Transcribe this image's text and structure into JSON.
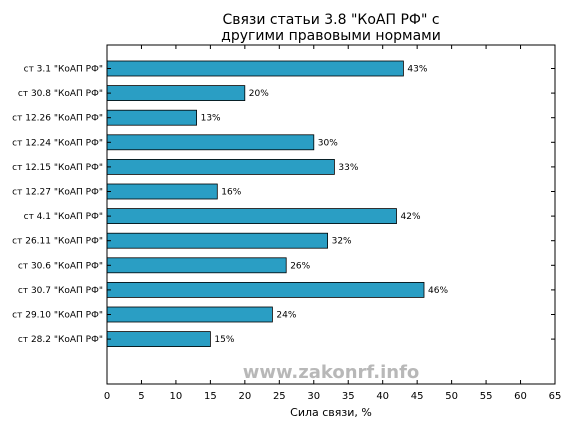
{
  "chart_data": {
    "type": "bar",
    "orientation": "horizontal",
    "title_line1": "Связи статьи 3.8 \"КоАП РФ\" с",
    "title_line2": "другими правовыми нормами",
    "xlabel": "Сила связи, %",
    "ylabel": "",
    "xlim": [
      0,
      65
    ],
    "x_ticks": [
      "0",
      "5",
      "10",
      "15",
      "20",
      "25",
      "30",
      "35",
      "40",
      "45",
      "50",
      "55",
      "60",
      "65"
    ],
    "categories": [
      "ст 3.1 \"КоАП РФ\"",
      "ст 30.8 \"КоАП РФ\"",
      "ст 12.26 \"КоАП РФ\"",
      "ст 12.24 \"КоАП РФ\"",
      "ст 12.15 \"КоАП РФ\"",
      "ст 12.27 \"КоАП РФ\"",
      "ст 4.1 \"КоАП РФ\"",
      "ст 26.11 \"КоАП РФ\"",
      "ст 30.6 \"КоАП РФ\"",
      "ст 30.7 \"КоАП РФ\"",
      "ст 29.10 \"КоАП РФ\"",
      "ст 28.2 \"КоАП РФ\""
    ],
    "values": [
      43,
      20,
      13,
      30,
      33,
      16,
      42,
      32,
      26,
      46,
      24,
      15
    ],
    "value_labels": [
      "43%",
      "20%",
      "13%",
      "30%",
      "33%",
      "16%",
      "42%",
      "32%",
      "26%",
      "46%",
      "24%",
      "15%"
    ],
    "bar_color": "#2a9ec4",
    "grid": false,
    "watermark": "www.zakonrf.info"
  }
}
